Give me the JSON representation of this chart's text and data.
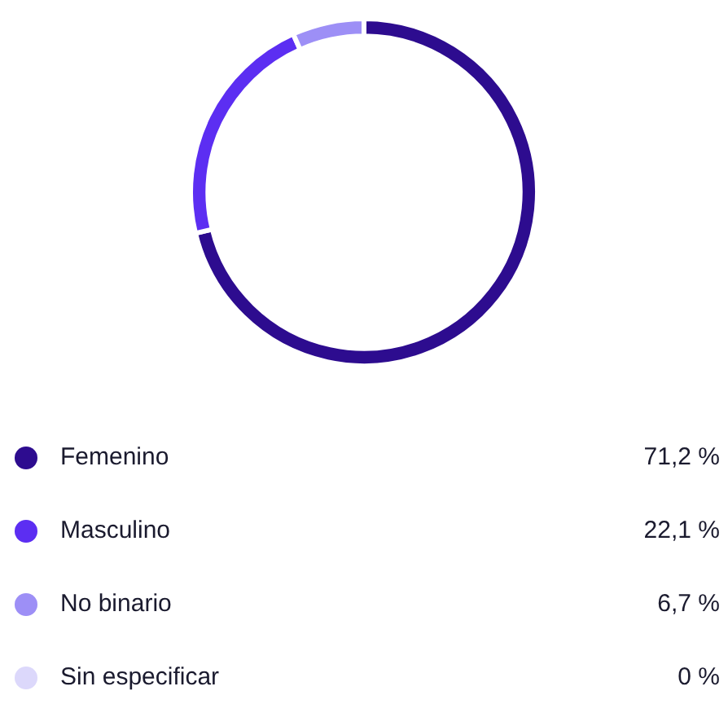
{
  "chart_data": {
    "type": "donut",
    "categories": [
      "Femenino",
      "Masculino",
      "No binario",
      "Sin especificar"
    ],
    "values": [
      71.2,
      22.1,
      6.7,
      0
    ],
    "value_labels": [
      "71,2 %",
      "22,1 %",
      "6,7 %",
      "0 %"
    ],
    "colors": [
      "#2d0c8f",
      "#5c2ef2",
      "#9d8ff6",
      "#dcd8fb"
    ],
    "legend": "bottom"
  }
}
